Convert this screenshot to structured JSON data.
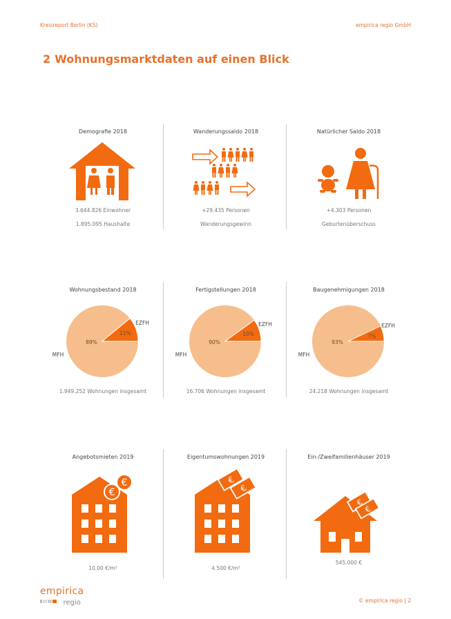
{
  "header": {
    "left": "Kreisreport Berlin (KS)",
    "right": "empirica regio GmbH"
  },
  "section": {
    "number": "2",
    "title": "Wohnungsmarktdaten auf einen Blick"
  },
  "colors": {
    "accent": "#E8702A",
    "icon_orange": "#F26B10",
    "pie_light": "#F6BE8C"
  },
  "row1": [
    {
      "title": "Demografie 2018",
      "icon": "house-family-icon",
      "line1": "3.644.826 Einwohner",
      "line2": "1.895.095 Haushalte"
    },
    {
      "title": "Wanderungssaldo 2018",
      "icon": "migration-people-icon",
      "line1": "+29.435 Personen",
      "line2": "Wanderungsgewinn"
    },
    {
      "title": "Natürlicher Saldo 2018",
      "icon": "baby-elderly-icon",
      "line1": "+4.303 Personen",
      "line2": "Geburtenüberschuss"
    }
  ],
  "chart_data": [
    {
      "type": "pie",
      "title": "Wohnungsbestand 2018",
      "categories": [
        "EZFH",
        "MFH"
      ],
      "values": [
        11,
        89
      ],
      "labels": [
        "11%",
        "89%"
      ],
      "caption": "1.949.252 Wohnungen insgesamt"
    },
    {
      "type": "pie",
      "title": "Fertigstellungen 2018",
      "categories": [
        "EZFH",
        "MFH"
      ],
      "values": [
        10,
        90
      ],
      "labels": [
        "10%",
        "90%"
      ],
      "caption": "16.706 Wohnungen insgesamt"
    },
    {
      "type": "pie",
      "title": "Baugenehmigungen 2018",
      "categories": [
        "EZFH",
        "MFH"
      ],
      "values": [
        7,
        93
      ],
      "labels": [
        "7%",
        "93%"
      ],
      "caption": "24.218 Wohnungen insgesamt"
    }
  ],
  "row3": [
    {
      "title": "Angebotsmieten 2019",
      "icon": "apartment-euro-icon",
      "value": "10,00 €/m²"
    },
    {
      "title": "Eigentumswohnungen 2019",
      "icon": "apartment-money-icon",
      "value": "4.500 €/m²"
    },
    {
      "title": "Ein-/Zweifamilienhäuser 2019",
      "icon": "house-money-icon",
      "value": "545.000 €"
    }
  ],
  "footer": {
    "logo_top": "empirica",
    "logo_bottom": "regio",
    "right": "© empirica regio | 2"
  }
}
